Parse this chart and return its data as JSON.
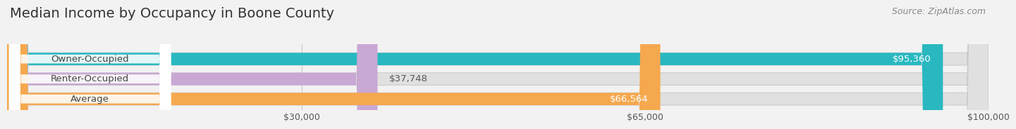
{
  "title": "Median Income by Occupancy in Boone County",
  "source": "Source: ZipAtlas.com",
  "categories": [
    "Owner-Occupied",
    "Renter-Occupied",
    "Average"
  ],
  "values": [
    95360,
    37748,
    66564
  ],
  "bar_colors": [
    "#29b8c0",
    "#c9a8d4",
    "#f5a84e"
  ],
  "bar_labels": [
    "$95,360",
    "$37,748",
    "$66,564"
  ],
  "xlim": [
    0,
    100000
  ],
  "xticks": [
    30000,
    65000,
    100000
  ],
  "xtick_labels": [
    "$30,000",
    "$65,000",
    "$100,000"
  ],
  "background_color": "#f2f2f2",
  "bar_bg_color": "#e0e0e0",
  "title_fontsize": 14,
  "source_fontsize": 9,
  "label_fontsize": 9.5,
  "tick_fontsize": 9,
  "value_label_fontsize": 9.5
}
